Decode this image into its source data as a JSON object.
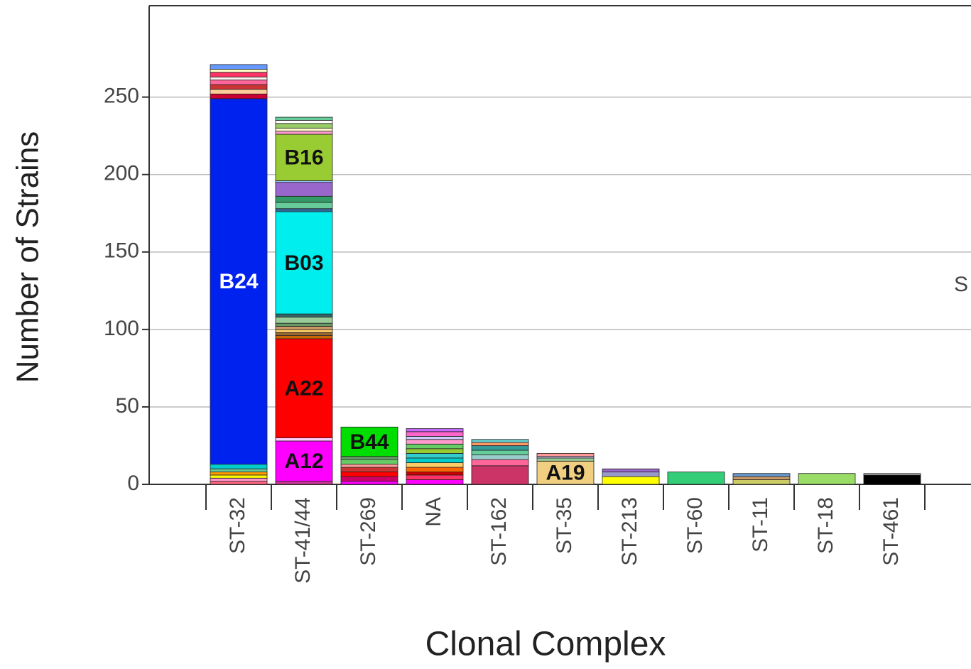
{
  "chart_data": {
    "type": "stacked-bar",
    "x_label": "Clonal Complex",
    "y_label": "Number of Strains",
    "annotation": "S",
    "categories": [
      "ST-32",
      "ST-41/44",
      "ST-269",
      "NA",
      "ST-162",
      "ST-35",
      "ST-213",
      "ST-60",
      "ST-11",
      "ST-18",
      "ST-461"
    ],
    "ylim": [
      0,
      309
    ],
    "yticks": [
      0,
      50,
      100,
      150,
      200,
      250
    ],
    "grid": true,
    "segments": [
      [
        {
          "value": 2,
          "color": "#ff6680"
        },
        {
          "value": 2,
          "color": "#ff99cc"
        },
        {
          "value": 2,
          "color": "#ffff00"
        },
        {
          "value": 2,
          "color": "#ff9900"
        },
        {
          "value": 2,
          "color": "#66cc99"
        },
        {
          "value": 3,
          "color": "#00cccc"
        },
        {
          "value": 236,
          "color": "#0022ee",
          "label": "B24",
          "label_color": "#ffffff"
        },
        {
          "value": 3,
          "color": "#cc0033"
        },
        {
          "value": 3,
          "color": "#ffcc99"
        },
        {
          "value": 3,
          "color": "#cc3333"
        },
        {
          "value": 3,
          "color": "#ff6699"
        },
        {
          "value": 2,
          "color": "#ffeeee"
        },
        {
          "value": 3,
          "color": "#ff3366"
        },
        {
          "value": 2,
          "color": "#ffffcc"
        },
        {
          "value": 3,
          "color": "#6699ff"
        }
      ],
      [
        {
          "value": 2,
          "color": "#cc3399"
        },
        {
          "value": 26,
          "color": "#ff00ff",
          "label": "A12",
          "label_color": "#111111"
        },
        {
          "value": 2,
          "color": "#ffccff"
        },
        {
          "value": 64,
          "color": "#ff0000",
          "label": "A22",
          "label_color": "#111111"
        },
        {
          "value": 2,
          "color": "#cc6600"
        },
        {
          "value": 2,
          "color": "#996633"
        },
        {
          "value": 2,
          "color": "#ffcc66"
        },
        {
          "value": 2,
          "color": "#cc9966"
        },
        {
          "value": 2,
          "color": "#669966"
        },
        {
          "value": 4,
          "color": "#99cc99"
        },
        {
          "value": 2,
          "color": "#336666"
        },
        {
          "value": 66,
          "color": "#00eeee",
          "label": "B03",
          "label_color": "#111111"
        },
        {
          "value": 2,
          "color": "#336699"
        },
        {
          "value": 4,
          "color": "#66cc99"
        },
        {
          "value": 4,
          "color": "#339966"
        },
        {
          "value": 9,
          "color": "#9966cc"
        },
        {
          "value": 1,
          "color": "#99ccff"
        },
        {
          "value": 30,
          "color": "#99cc33",
          "label": "B16",
          "label_color": "#111111"
        },
        {
          "value": 2,
          "color": "#ff99cc"
        },
        {
          "value": 2,
          "color": "#ffffcc"
        },
        {
          "value": 3,
          "color": "#99cc66"
        },
        {
          "value": 2,
          "color": "#ffffff"
        },
        {
          "value": 2,
          "color": "#66cc99"
        }
      ],
      [
        {
          "value": 2,
          "color": "#ff00ff"
        },
        {
          "value": 3,
          "color": "#cc0066"
        },
        {
          "value": 3,
          "color": "#ff0000"
        },
        {
          "value": 3,
          "color": "#cc3333"
        },
        {
          "value": 2,
          "color": "#ff9999"
        },
        {
          "value": 3,
          "color": "#66cc66"
        },
        {
          "value": 2,
          "color": "#669966"
        },
        {
          "value": 19,
          "color": "#00dd00",
          "label": "B44",
          "label_color": "#111111"
        }
      ],
      [
        {
          "value": 3,
          "color": "#ff00ff"
        },
        {
          "value": 3,
          "color": "#ff3366"
        },
        {
          "value": 2,
          "color": "#cc0000"
        },
        {
          "value": 3,
          "color": "#ff6600"
        },
        {
          "value": 3,
          "color": "#ffcc66"
        },
        {
          "value": 3,
          "color": "#00cccc"
        },
        {
          "value": 3,
          "color": "#33cccc"
        },
        {
          "value": 3,
          "color": "#99cc33"
        },
        {
          "value": 3,
          "color": "#66cc66"
        },
        {
          "value": 3,
          "color": "#ff99cc"
        },
        {
          "value": 2,
          "color": "#ccccff"
        },
        {
          "value": 3,
          "color": "#ff66cc"
        },
        {
          "value": 2,
          "color": "#cc66ff"
        }
      ],
      [
        {
          "value": 12,
          "color": "#cc3366"
        },
        {
          "value": 4,
          "color": "#ff6699"
        },
        {
          "value": 3,
          "color": "#99cccc"
        },
        {
          "value": 3,
          "color": "#66cc99"
        },
        {
          "value": 3,
          "color": "#339999"
        },
        {
          "value": 2,
          "color": "#ff9966"
        },
        {
          "value": 2,
          "color": "#66cccc"
        }
      ],
      [
        {
          "value": 15,
          "color": "#f0d080",
          "label": "A19",
          "label_color": "#111111"
        },
        {
          "value": 2,
          "color": "#99cc99"
        },
        {
          "value": 1,
          "color": "#ccccff"
        },
        {
          "value": 2,
          "color": "#ff9999"
        }
      ],
      [
        {
          "value": 5,
          "color": "#ffff00"
        },
        {
          "value": 3,
          "color": "#9999cc"
        },
        {
          "value": 2,
          "color": "#9966cc"
        }
      ],
      [
        {
          "value": 8,
          "color": "#33cc77"
        }
      ],
      [
        {
          "value": 3,
          "color": "#cccc66"
        },
        {
          "value": 2,
          "color": "#cc9966"
        },
        {
          "value": 2,
          "color": "#6699cc"
        }
      ],
      [
        {
          "value": 7,
          "color": "#99dd66"
        }
      ],
      [
        {
          "value": 6,
          "color": "#000000"
        },
        {
          "value": 1,
          "color": "#cccccc"
        }
      ]
    ]
  }
}
